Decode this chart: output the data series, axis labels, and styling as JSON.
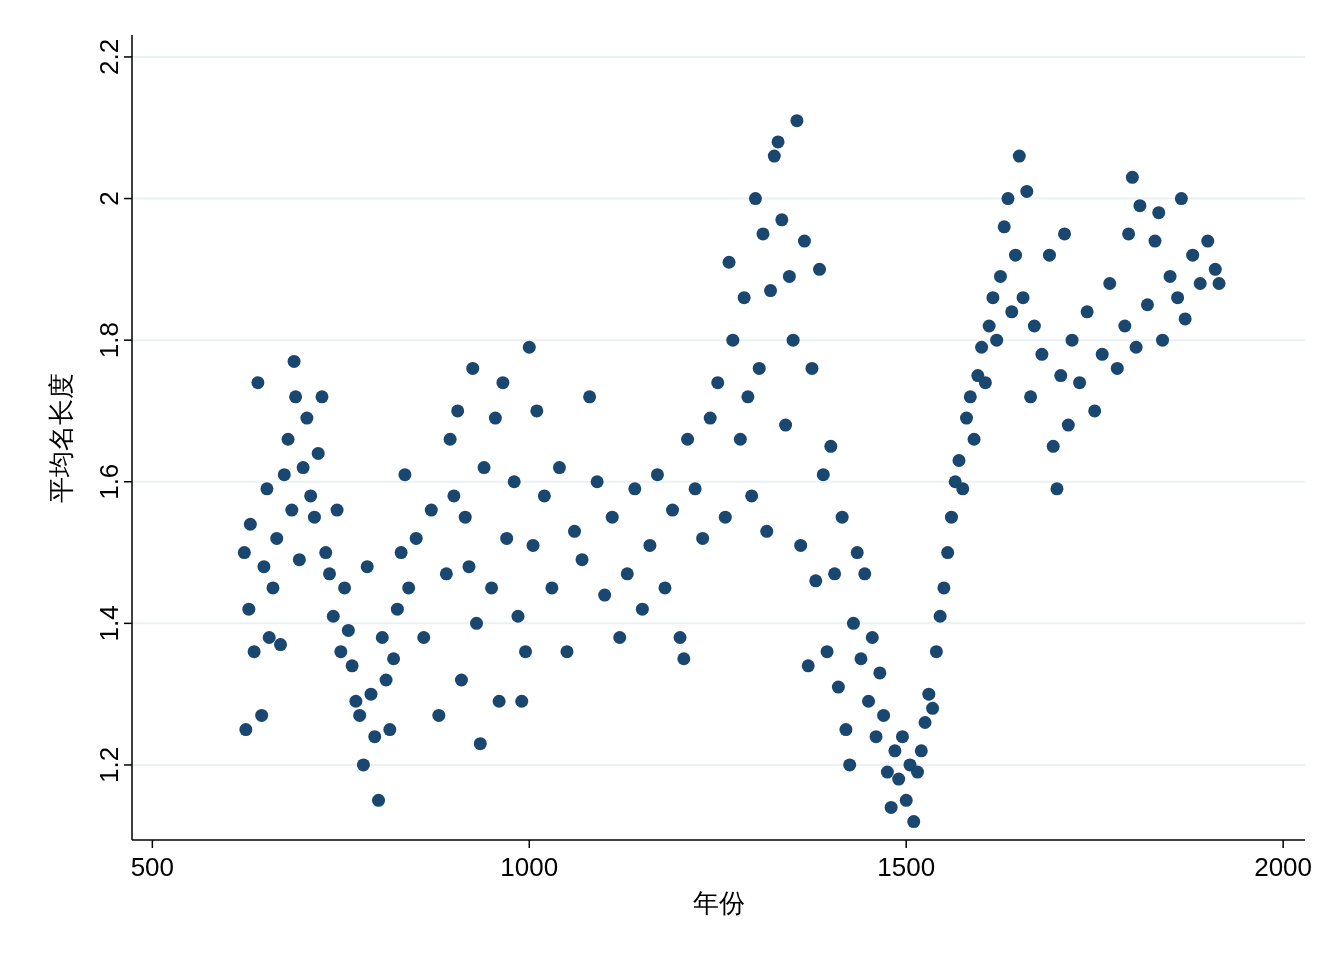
{
  "chart_data": {
    "type": "scatter",
    "xlabel": "年份",
    "ylabel": "平均名长度",
    "xlim": [
      473,
      2029
    ],
    "ylim": [
      1.094,
      2.231
    ],
    "xticks": [
      500,
      1000,
      1500,
      2000
    ],
    "yticks": [
      1.2,
      1.4,
      1.6,
      1.8,
      2,
      2.2
    ],
    "grid": "y",
    "marker": "circle",
    "series": [
      {
        "color": "#1a476f",
        "x": [
          622,
          624,
          628,
          630,
          635,
          640,
          645,
          648,
          652,
          655,
          660,
          665,
          670,
          675,
          680,
          685,
          688,
          690,
          695,
          700,
          705,
          710,
          715,
          720,
          725,
          730,
          735,
          740,
          745,
          750,
          755,
          760,
          765,
          770,
          775,
          780,
          785,
          790,
          795,
          800,
          805,
          810,
          815,
          820,
          825,
          830,
          835,
          840,
          850,
          860,
          870,
          880,
          890,
          895,
          900,
          905,
          910,
          915,
          920,
          925,
          930,
          935,
          940,
          950,
          955,
          960,
          965,
          970,
          980,
          985,
          990,
          995,
          1000,
          1005,
          1010,
          1020,
          1030,
          1040,
          1050,
          1060,
          1070,
          1080,
          1090,
          1100,
          1110,
          1120,
          1130,
          1140,
          1150,
          1160,
          1170,
          1180,
          1190,
          1200,
          1205,
          1210,
          1220,
          1230,
          1240,
          1250,
          1260,
          1265,
          1270,
          1280,
          1285,
          1290,
          1295,
          1300,
          1305,
          1310,
          1315,
          1320,
          1325,
          1330,
          1335,
          1340,
          1345,
          1350,
          1355,
          1360,
          1365,
          1370,
          1375,
          1380,
          1385,
          1390,
          1395,
          1400,
          1405,
          1410,
          1415,
          1420,
          1425,
          1430,
          1435,
          1440,
          1445,
          1450,
          1455,
          1460,
          1465,
          1470,
          1475,
          1480,
          1485,
          1490,
          1495,
          1500,
          1505,
          1510,
          1515,
          1520,
          1525,
          1530,
          1535,
          1540,
          1545,
          1550,
          1555,
          1560,
          1565,
          1570,
          1575,
          1580,
          1585,
          1590,
          1595,
          1600,
          1605,
          1610,
          1615,
          1620,
          1625,
          1630,
          1635,
          1640,
          1645,
          1650,
          1655,
          1660,
          1665,
          1670,
          1680,
          1690,
          1695,
          1700,
          1705,
          1710,
          1715,
          1720,
          1730,
          1740,
          1750,
          1760,
          1770,
          1780,
          1790,
          1795,
          1800,
          1805,
          1810,
          1820,
          1830,
          1835,
          1840,
          1850,
          1860,
          1865,
          1870,
          1880,
          1890,
          1900,
          1910,
          1915
        ],
        "values": [
          1.5,
          1.25,
          1.42,
          1.54,
          1.36,
          1.74,
          1.27,
          1.48,
          1.59,
          1.38,
          1.45,
          1.52,
          1.37,
          1.61,
          1.66,
          1.56,
          1.77,
          1.72,
          1.49,
          1.62,
          1.69,
          1.58,
          1.55,
          1.64,
          1.72,
          1.5,
          1.47,
          1.41,
          1.56,
          1.36,
          1.45,
          1.39,
          1.34,
          1.29,
          1.27,
          1.2,
          1.48,
          1.3,
          1.24,
          1.15,
          1.38,
          1.32,
          1.25,
          1.35,
          1.42,
          1.5,
          1.61,
          1.45,
          1.52,
          1.38,
          1.56,
          1.27,
          1.47,
          1.66,
          1.58,
          1.7,
          1.32,
          1.55,
          1.48,
          1.76,
          1.4,
          1.23,
          1.62,
          1.45,
          1.69,
          1.29,
          1.74,
          1.52,
          1.6,
          1.41,
          1.29,
          1.36,
          1.79,
          1.51,
          1.7,
          1.58,
          1.45,
          1.62,
          1.36,
          1.53,
          1.49,
          1.72,
          1.6,
          1.44,
          1.55,
          1.38,
          1.47,
          1.59,
          1.42,
          1.51,
          1.61,
          1.45,
          1.56,
          1.38,
          1.35,
          1.66,
          1.59,
          1.52,
          1.69,
          1.74,
          1.55,
          1.91,
          1.8,
          1.66,
          1.86,
          1.72,
          1.58,
          2,
          1.76,
          1.95,
          1.53,
          1.87,
          2.06,
          2.08,
          1.97,
          1.68,
          1.89,
          1.8,
          2.11,
          1.51,
          1.94,
          1.34,
          1.76,
          1.46,
          1.9,
          1.61,
          1.36,
          1.65,
          1.47,
          1.31,
          1.55,
          1.25,
          1.2,
          1.4,
          1.5,
          1.35,
          1.47,
          1.29,
          1.38,
          1.24,
          1.33,
          1.27,
          1.19,
          1.14,
          1.22,
          1.18,
          1.24,
          1.15,
          1.2,
          1.12,
          1.19,
          1.22,
          1.26,
          1.3,
          1.28,
          1.36,
          1.41,
          1.45,
          1.5,
          1.55,
          1.6,
          1.63,
          1.59,
          1.69,
          1.72,
          1.66,
          1.75,
          1.79,
          1.74,
          1.82,
          1.86,
          1.8,
          1.89,
          1.96,
          2,
          1.84,
          1.92,
          2.06,
          1.86,
          2.01,
          1.72,
          1.82,
          1.78,
          1.92,
          1.65,
          1.59,
          1.75,
          1.95,
          1.68,
          1.8,
          1.74,
          1.84,
          1.7,
          1.78,
          1.88,
          1.76,
          1.82,
          1.95,
          2.03,
          1.79,
          1.99,
          1.85,
          1.94,
          1.98,
          1.8,
          1.89,
          1.86,
          2,
          1.83,
          1.92,
          1.88,
          1.94,
          1.9,
          1.88
        ]
      }
    ]
  }
}
